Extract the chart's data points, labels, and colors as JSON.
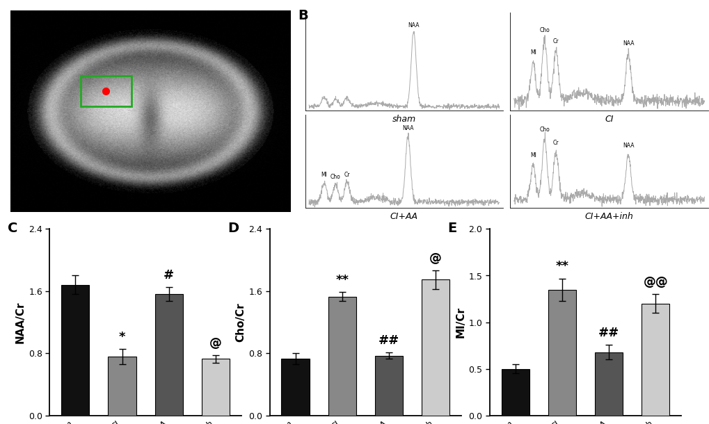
{
  "panel_C": {
    "title": "C",
    "ylabel": "NAA/Cr",
    "categories": [
      "sham",
      "CI",
      "CI+AA",
      "CI+AA+inh"
    ],
    "values": [
      1.68,
      0.76,
      1.56,
      0.73
    ],
    "errors": [
      0.12,
      0.1,
      0.09,
      0.05
    ],
    "colors": [
      "#111111",
      "#888888",
      "#555555",
      "#cccccc"
    ],
    "ylim": [
      0,
      2.4
    ],
    "yticks": [
      0.0,
      0.8,
      1.6,
      2.4
    ],
    "annotations": [
      {
        "bar": 1,
        "text": "*",
        "fontsize": 13
      },
      {
        "bar": 2,
        "text": "#",
        "fontsize": 13
      },
      {
        "bar": 3,
        "text": "@",
        "fontsize": 13
      }
    ]
  },
  "panel_D": {
    "title": "D",
    "ylabel": "Cho/Cr",
    "categories": [
      "sham",
      "CI",
      "CI+AA",
      "CI+AA+inh"
    ],
    "values": [
      0.73,
      1.53,
      0.77,
      1.75
    ],
    "errors": [
      0.07,
      0.06,
      0.04,
      0.12
    ],
    "colors": [
      "#111111",
      "#888888",
      "#555555",
      "#cccccc"
    ],
    "ylim": [
      0,
      2.4
    ],
    "yticks": [
      0.0,
      0.8,
      1.6,
      2.4
    ],
    "annotations": [
      {
        "bar": 1,
        "text": "**",
        "fontsize": 13
      },
      {
        "bar": 2,
        "text": "##",
        "fontsize": 13
      },
      {
        "bar": 3,
        "text": "@",
        "fontsize": 13
      }
    ]
  },
  "panel_E": {
    "title": "E",
    "ylabel": "MI/Cr",
    "categories": [
      "sham",
      "CI",
      "CI+AA",
      "CI+AA+inh"
    ],
    "values": [
      0.5,
      1.35,
      0.68,
      1.2
    ],
    "errors": [
      0.05,
      0.12,
      0.08,
      0.1
    ],
    "colors": [
      "#111111",
      "#888888",
      "#555555",
      "#cccccc"
    ],
    "ylim": [
      0,
      2.0
    ],
    "yticks": [
      0.0,
      0.5,
      1.0,
      1.5,
      2.0
    ],
    "annotations": [
      {
        "bar": 1,
        "text": "**",
        "fontsize": 13
      },
      {
        "bar": 2,
        "text": "##",
        "fontsize": 13
      },
      {
        "bar": 3,
        "text": "@@",
        "fontsize": 13
      }
    ]
  },
  "spectra": [
    {
      "label": "sham",
      "peaks": {
        "MI": 0.08,
        "Cho": 0.14,
        "Cr": 0.2,
        "NAA": 0.55
      },
      "peak_heights": {
        "NAA": 1.0,
        "MI": 0.12,
        "Cho": 0.1,
        "Cr": 0.12
      },
      "show_peaks": [
        "NAA"
      ],
      "seed": 10
    },
    {
      "label": "CI",
      "peaks": {
        "MI": 0.1,
        "Cho": 0.16,
        "Cr": 0.22,
        "NAA": 0.6
      },
      "peak_heights": {
        "NAA": 0.25,
        "MI": 0.2,
        "Cho": 0.32,
        "Cr": 0.26
      },
      "show_peaks": [
        "MI",
        "Cho",
        "Cr",
        "NAA"
      ],
      "seed": 20
    },
    {
      "label": "CI+AA",
      "peaks": {
        "MI": 0.08,
        "Cho": 0.14,
        "Cr": 0.2,
        "NAA": 0.52
      },
      "peak_heights": {
        "NAA": 0.6,
        "MI": 0.18,
        "Cho": 0.16,
        "Cr": 0.18
      },
      "show_peaks": [
        "MI",
        "Cho",
        "Cr",
        "NAA"
      ],
      "seed": 30
    },
    {
      "label": "CI+AA+inh",
      "peaks": {
        "MI": 0.1,
        "Cho": 0.16,
        "Cr": 0.22,
        "NAA": 0.6
      },
      "peak_heights": {
        "NAA": 0.28,
        "MI": 0.22,
        "Cho": 0.38,
        "Cr": 0.3
      },
      "show_peaks": [
        "MI",
        "Cho",
        "Cr",
        "NAA"
      ],
      "seed": 40
    }
  ],
  "background_color": "#ffffff"
}
